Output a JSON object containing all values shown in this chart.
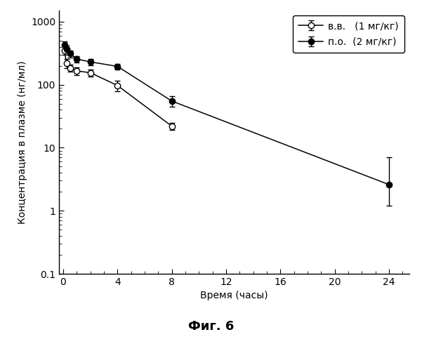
{
  "title": "Фиг. 6",
  "xlabel": "Время (часы)",
  "ylabel": "Концентрация в плазме (нг/мл)",
  "xlim": [
    -0.3,
    25.5
  ],
  "ylim": [
    0.1,
    1500
  ],
  "xticks": [
    0,
    4,
    8,
    12,
    16,
    20,
    24
  ],
  "ytick_labels": [
    "0.1",
    "1",
    "10",
    "100",
    "1000"
  ],
  "ytick_vals": [
    0.1,
    1,
    10,
    100,
    1000
  ],
  "series_vv": {
    "label": "в.в.   (1 мг/кг)",
    "x": [
      0.083,
      0.25,
      0.5,
      1.0,
      2.0,
      4.0,
      8.0
    ],
    "y": [
      350,
      220,
      185,
      165,
      155,
      97,
      22
    ],
    "yerr_low": [
      55,
      35,
      25,
      25,
      20,
      18,
      3
    ],
    "yerr_high": [
      90,
      35,
      25,
      25,
      20,
      18,
      3
    ],
    "marker": "o",
    "markerfacecolor": "white",
    "markeredgecolor": "black",
    "color": "black"
  },
  "series_po": {
    "label": "п.о.  (2 мг/кг)",
    "x": [
      0.083,
      0.25,
      0.5,
      1.0,
      2.0,
      4.0,
      8.0,
      24.0
    ],
    "y": [
      430,
      370,
      310,
      255,
      230,
      195,
      55,
      2.6
    ],
    "yerr_low": [
      60,
      45,
      40,
      30,
      25,
      20,
      10,
      1.4
    ],
    "yerr_high": [
      60,
      45,
      40,
      30,
      25,
      20,
      10,
      4.5
    ],
    "marker": "o",
    "markerfacecolor": "black",
    "markeredgecolor": "black",
    "color": "black"
  },
  "legend_pos": "upper right",
  "bg_color": "#ffffff",
  "markersize": 6,
  "linewidth": 1.1,
  "capsize": 3,
  "elinewidth": 1.0,
  "title_fontsize": 13,
  "label_fontsize": 10,
  "tick_fontsize": 10,
  "legend_fontsize": 10
}
